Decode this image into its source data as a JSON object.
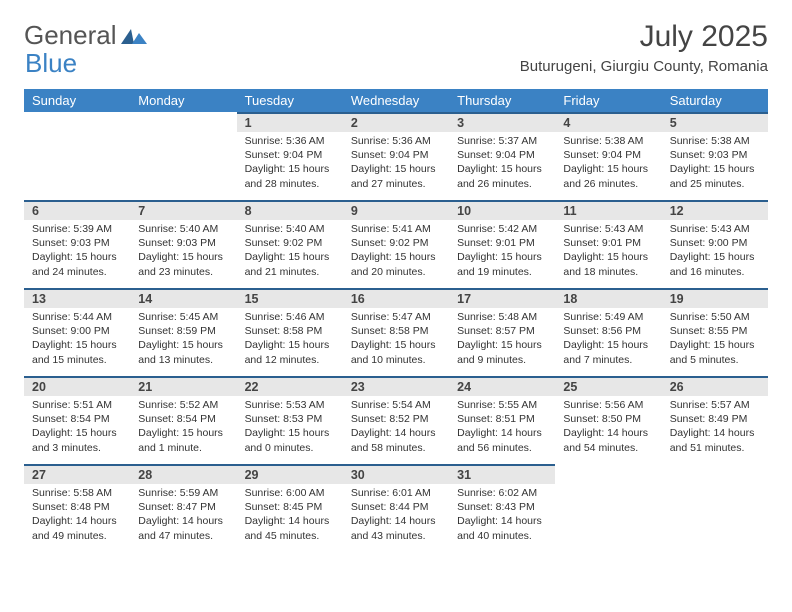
{
  "brand": {
    "general": "General",
    "blue": "Blue"
  },
  "title": "July 2025",
  "location": "Buturugeni, Giurgiu County, Romania",
  "weekdays": [
    "Sunday",
    "Monday",
    "Tuesday",
    "Wednesday",
    "Thursday",
    "Friday",
    "Saturday"
  ],
  "colors": {
    "header_bg": "#3b82c4",
    "header_text": "#ffffff",
    "daynum_bg": "#e7e7e7",
    "daynum_border": "#2b5f8f",
    "body_text": "#333333",
    "logo_gray": "#555555",
    "logo_blue": "#3b82c4"
  },
  "weeks": [
    [
      null,
      null,
      {
        "n": "1",
        "sr": "Sunrise: 5:36 AM",
        "ss": "Sunset: 9:04 PM",
        "d1": "Daylight: 15 hours",
        "d2": "and 28 minutes."
      },
      {
        "n": "2",
        "sr": "Sunrise: 5:36 AM",
        "ss": "Sunset: 9:04 PM",
        "d1": "Daylight: 15 hours",
        "d2": "and 27 minutes."
      },
      {
        "n": "3",
        "sr": "Sunrise: 5:37 AM",
        "ss": "Sunset: 9:04 PM",
        "d1": "Daylight: 15 hours",
        "d2": "and 26 minutes."
      },
      {
        "n": "4",
        "sr": "Sunrise: 5:38 AM",
        "ss": "Sunset: 9:04 PM",
        "d1": "Daylight: 15 hours",
        "d2": "and 26 minutes."
      },
      {
        "n": "5",
        "sr": "Sunrise: 5:38 AM",
        "ss": "Sunset: 9:03 PM",
        "d1": "Daylight: 15 hours",
        "d2": "and 25 minutes."
      }
    ],
    [
      {
        "n": "6",
        "sr": "Sunrise: 5:39 AM",
        "ss": "Sunset: 9:03 PM",
        "d1": "Daylight: 15 hours",
        "d2": "and 24 minutes."
      },
      {
        "n": "7",
        "sr": "Sunrise: 5:40 AM",
        "ss": "Sunset: 9:03 PM",
        "d1": "Daylight: 15 hours",
        "d2": "and 23 minutes."
      },
      {
        "n": "8",
        "sr": "Sunrise: 5:40 AM",
        "ss": "Sunset: 9:02 PM",
        "d1": "Daylight: 15 hours",
        "d2": "and 21 minutes."
      },
      {
        "n": "9",
        "sr": "Sunrise: 5:41 AM",
        "ss": "Sunset: 9:02 PM",
        "d1": "Daylight: 15 hours",
        "d2": "and 20 minutes."
      },
      {
        "n": "10",
        "sr": "Sunrise: 5:42 AM",
        "ss": "Sunset: 9:01 PM",
        "d1": "Daylight: 15 hours",
        "d2": "and 19 minutes."
      },
      {
        "n": "11",
        "sr": "Sunrise: 5:43 AM",
        "ss": "Sunset: 9:01 PM",
        "d1": "Daylight: 15 hours",
        "d2": "and 18 minutes."
      },
      {
        "n": "12",
        "sr": "Sunrise: 5:43 AM",
        "ss": "Sunset: 9:00 PM",
        "d1": "Daylight: 15 hours",
        "d2": "and 16 minutes."
      }
    ],
    [
      {
        "n": "13",
        "sr": "Sunrise: 5:44 AM",
        "ss": "Sunset: 9:00 PM",
        "d1": "Daylight: 15 hours",
        "d2": "and 15 minutes."
      },
      {
        "n": "14",
        "sr": "Sunrise: 5:45 AM",
        "ss": "Sunset: 8:59 PM",
        "d1": "Daylight: 15 hours",
        "d2": "and 13 minutes."
      },
      {
        "n": "15",
        "sr": "Sunrise: 5:46 AM",
        "ss": "Sunset: 8:58 PM",
        "d1": "Daylight: 15 hours",
        "d2": "and 12 minutes."
      },
      {
        "n": "16",
        "sr": "Sunrise: 5:47 AM",
        "ss": "Sunset: 8:58 PM",
        "d1": "Daylight: 15 hours",
        "d2": "and 10 minutes."
      },
      {
        "n": "17",
        "sr": "Sunrise: 5:48 AM",
        "ss": "Sunset: 8:57 PM",
        "d1": "Daylight: 15 hours",
        "d2": "and 9 minutes."
      },
      {
        "n": "18",
        "sr": "Sunrise: 5:49 AM",
        "ss": "Sunset: 8:56 PM",
        "d1": "Daylight: 15 hours",
        "d2": "and 7 minutes."
      },
      {
        "n": "19",
        "sr": "Sunrise: 5:50 AM",
        "ss": "Sunset: 8:55 PM",
        "d1": "Daylight: 15 hours",
        "d2": "and 5 minutes."
      }
    ],
    [
      {
        "n": "20",
        "sr": "Sunrise: 5:51 AM",
        "ss": "Sunset: 8:54 PM",
        "d1": "Daylight: 15 hours",
        "d2": "and 3 minutes."
      },
      {
        "n": "21",
        "sr": "Sunrise: 5:52 AM",
        "ss": "Sunset: 8:54 PM",
        "d1": "Daylight: 15 hours",
        "d2": "and 1 minute."
      },
      {
        "n": "22",
        "sr": "Sunrise: 5:53 AM",
        "ss": "Sunset: 8:53 PM",
        "d1": "Daylight: 15 hours",
        "d2": "and 0 minutes."
      },
      {
        "n": "23",
        "sr": "Sunrise: 5:54 AM",
        "ss": "Sunset: 8:52 PM",
        "d1": "Daylight: 14 hours",
        "d2": "and 58 minutes."
      },
      {
        "n": "24",
        "sr": "Sunrise: 5:55 AM",
        "ss": "Sunset: 8:51 PM",
        "d1": "Daylight: 14 hours",
        "d2": "and 56 minutes."
      },
      {
        "n": "25",
        "sr": "Sunrise: 5:56 AM",
        "ss": "Sunset: 8:50 PM",
        "d1": "Daylight: 14 hours",
        "d2": "and 54 minutes."
      },
      {
        "n": "26",
        "sr": "Sunrise: 5:57 AM",
        "ss": "Sunset: 8:49 PM",
        "d1": "Daylight: 14 hours",
        "d2": "and 51 minutes."
      }
    ],
    [
      {
        "n": "27",
        "sr": "Sunrise: 5:58 AM",
        "ss": "Sunset: 8:48 PM",
        "d1": "Daylight: 14 hours",
        "d2": "and 49 minutes."
      },
      {
        "n": "28",
        "sr": "Sunrise: 5:59 AM",
        "ss": "Sunset: 8:47 PM",
        "d1": "Daylight: 14 hours",
        "d2": "and 47 minutes."
      },
      {
        "n": "29",
        "sr": "Sunrise: 6:00 AM",
        "ss": "Sunset: 8:45 PM",
        "d1": "Daylight: 14 hours",
        "d2": "and 45 minutes."
      },
      {
        "n": "30",
        "sr": "Sunrise: 6:01 AM",
        "ss": "Sunset: 8:44 PM",
        "d1": "Daylight: 14 hours",
        "d2": "and 43 minutes."
      },
      {
        "n": "31",
        "sr": "Sunrise: 6:02 AM",
        "ss": "Sunset: 8:43 PM",
        "d1": "Daylight: 14 hours",
        "d2": "and 40 minutes."
      },
      null,
      null
    ]
  ]
}
